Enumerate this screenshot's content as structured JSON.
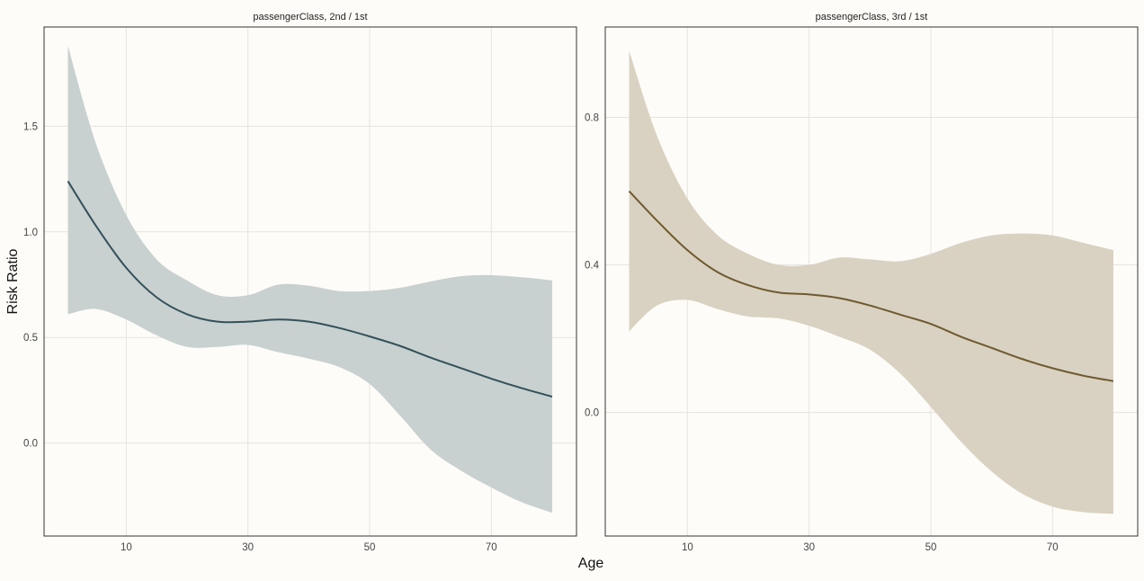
{
  "chart_data": [
    {
      "type": "line",
      "title": "passengerClass, 2nd / 1st",
      "xlabel": "Age",
      "ylabel": "Risk Ratio",
      "xlim": [
        -3.5,
        84
      ],
      "ylim": [
        -0.44,
        1.97
      ],
      "xticks": [
        10,
        30,
        50,
        70
      ],
      "yticks": [
        0.0,
        0.5,
        1.0,
        1.5
      ],
      "ytick_labels": [
        "0.0",
        "0.5",
        "1.0",
        "1.5"
      ],
      "grid": true,
      "color": "#34515a",
      "band_color": "#c8d0d0",
      "series": [
        {
          "x": [
            0.42,
            5,
            10,
            15,
            20,
            25,
            30,
            35,
            40,
            45,
            50,
            55,
            60,
            65,
            70,
            75,
            80
          ],
          "y": [
            1.24,
            1.03,
            0.83,
            0.69,
            0.61,
            0.575,
            0.575,
            0.585,
            0.575,
            0.545,
            0.505,
            0.46,
            0.405,
            0.355,
            0.305,
            0.26,
            0.22
          ],
          "lower": [
            0.61,
            0.635,
            0.585,
            0.51,
            0.455,
            0.455,
            0.465,
            0.43,
            0.4,
            0.36,
            0.28,
            0.13,
            -0.03,
            -0.13,
            -0.21,
            -0.28,
            -0.33
          ],
          "upper": [
            1.88,
            1.42,
            1.08,
            0.87,
            0.77,
            0.7,
            0.7,
            0.75,
            0.745,
            0.72,
            0.72,
            0.735,
            0.765,
            0.79,
            0.795,
            0.785,
            0.77
          ]
        }
      ]
    },
    {
      "type": "line",
      "title": "passengerClass, 3rd / 1st",
      "xlabel": "Age",
      "ylabel": "Risk Ratio",
      "xlim": [
        -3.5,
        84
      ],
      "ylim": [
        -0.335,
        1.045
      ],
      "xticks": [
        10,
        30,
        50,
        70
      ],
      "yticks": [
        0.0,
        0.4,
        0.8
      ],
      "ytick_labels": [
        "0.0",
        "0.4",
        "0.8"
      ],
      "grid": true,
      "color": "#6f5a30",
      "band_color": "#d9d1c2",
      "series": [
        {
          "x": [
            0.42,
            5,
            10,
            15,
            20,
            25,
            30,
            35,
            40,
            45,
            50,
            55,
            60,
            65,
            70,
            75,
            80
          ],
          "y": [
            0.6,
            0.52,
            0.44,
            0.38,
            0.345,
            0.325,
            0.32,
            0.31,
            0.29,
            0.265,
            0.24,
            0.205,
            0.175,
            0.145,
            0.12,
            0.1,
            0.085
          ],
          "lower": [
            0.22,
            0.29,
            0.305,
            0.28,
            0.26,
            0.255,
            0.235,
            0.205,
            0.17,
            0.105,
            0.015,
            -0.08,
            -0.16,
            -0.22,
            -0.255,
            -0.27,
            -0.275
          ],
          "upper": [
            0.98,
            0.75,
            0.58,
            0.48,
            0.43,
            0.4,
            0.4,
            0.42,
            0.415,
            0.41,
            0.43,
            0.46,
            0.48,
            0.485,
            0.48,
            0.46,
            0.44
          ]
        }
      ]
    }
  ]
}
